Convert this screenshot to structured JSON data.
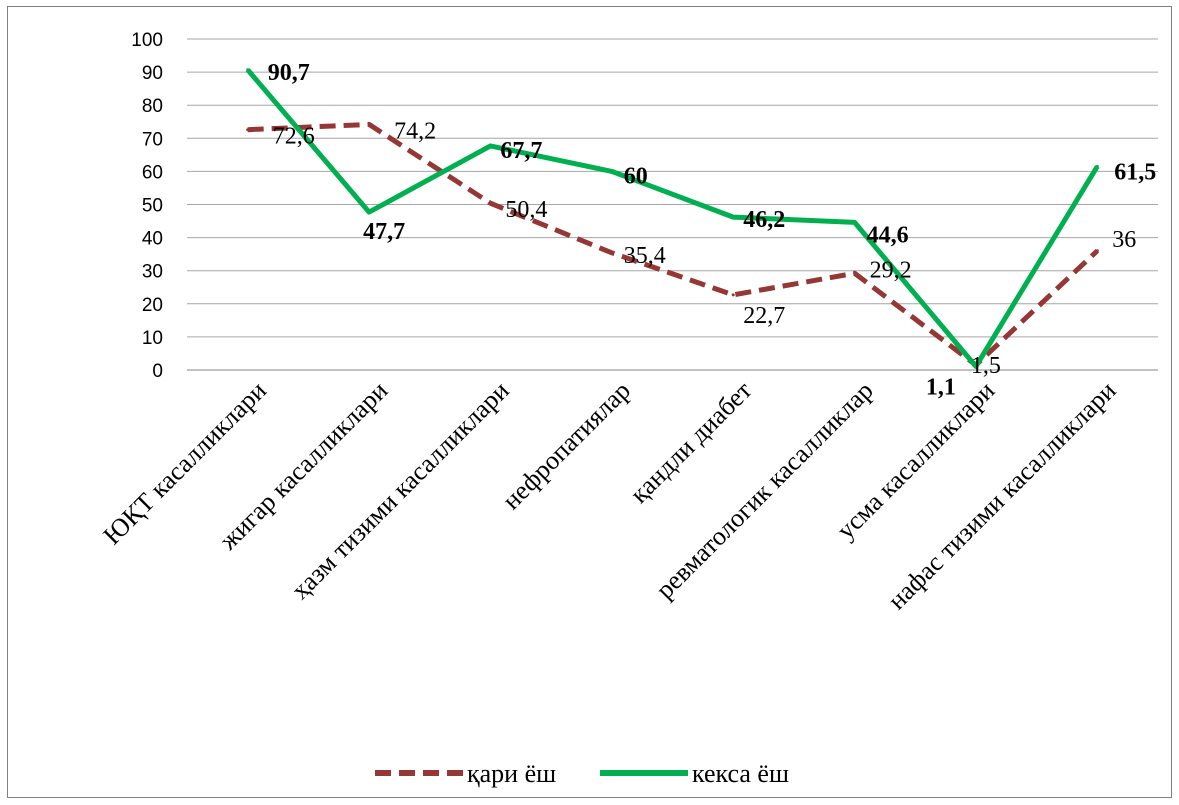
{
  "chart_data": {
    "type": "line",
    "categories": [
      "ЮҚТ касалликлари",
      "жигар касалликлари",
      "ҳазм тизими касалликлари",
      "нефропатиялар",
      "қандли диабет",
      "ревматологик касалликлар",
      "усма касалликлари",
      "нафас тизими касалликлари"
    ],
    "series": [
      {
        "name": "қари ёш",
        "values": [
          72.6,
          74.2,
          50.4,
          35.4,
          22.7,
          29.2,
          1.5,
          36
        ],
        "labels": [
          "72,6",
          "74,2",
          "50,4",
          "35,4",
          "22,7",
          "29,2",
          "1,5",
          "36"
        ],
        "color": "#953735",
        "style": "dashed"
      },
      {
        "name": "кекса ёш",
        "values": [
          90.7,
          47.7,
          67.7,
          60,
          46.2,
          44.6,
          1.1,
          61.5
        ],
        "labels": [
          "90,7",
          "47,7",
          "67,7",
          "60",
          "46,2",
          "44,6",
          "1,1",
          "61,5"
        ],
        "color": "#00b050",
        "style": "solid"
      }
    ],
    "yticks": [
      "0",
      "10",
      "20",
      "30",
      "40",
      "50",
      "60",
      "70",
      "80",
      "90",
      "100"
    ],
    "ylim": [
      0,
      100
    ],
    "grid": true,
    "legend_position": "bottom",
    "title": "",
    "xlabel": "",
    "ylabel": ""
  }
}
